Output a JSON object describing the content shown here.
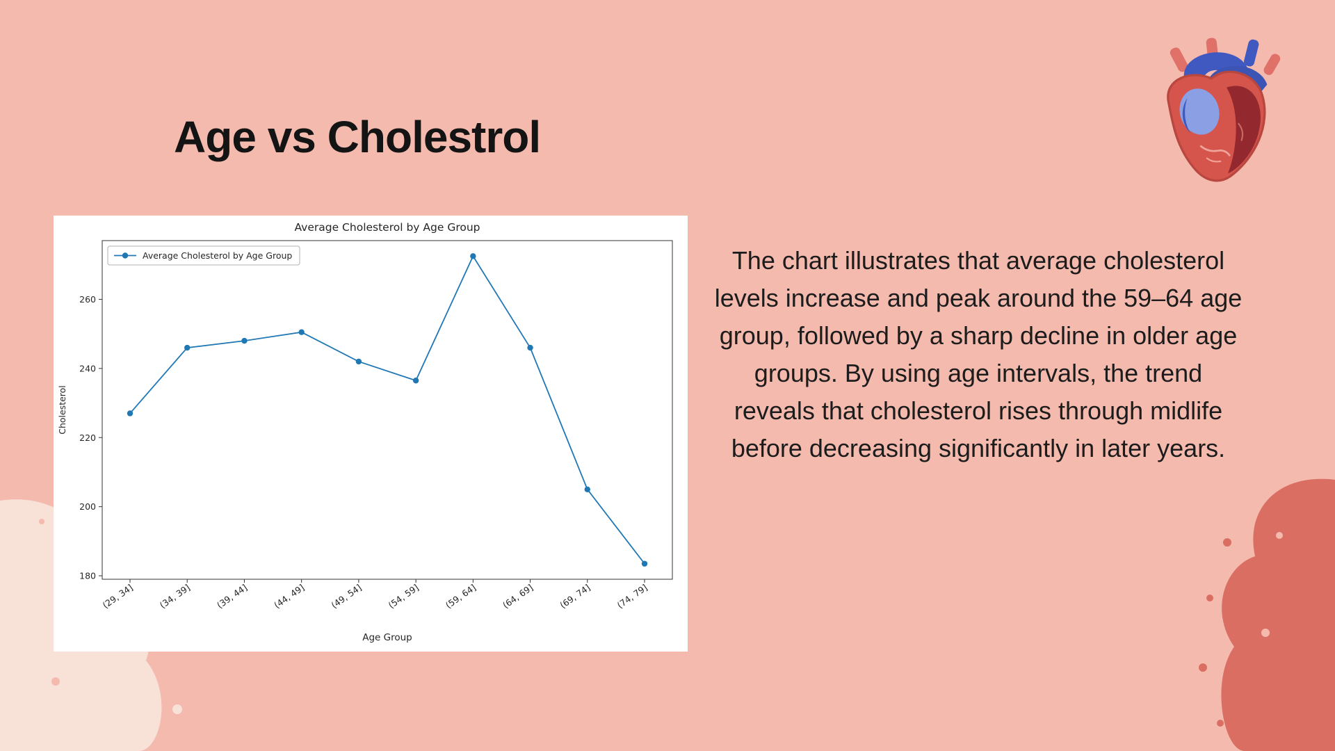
{
  "slide": {
    "title": "Age vs Cholestrol",
    "description": "The chart illustrates that average cholesterol levels increase and peak around the 59–64 age group, followed by a sharp decline in older age groups. By using age intervals, the trend reveals that cholesterol rises through midlife before decreasing significantly in later years."
  },
  "colors": {
    "background": "#f4baae",
    "blob_light": "#f8e2d7",
    "blob_dark": "#da6e62",
    "panel": "#ffffff",
    "line": "#1f77b4",
    "text": "#1c1c1c"
  },
  "chart_data": {
    "type": "line",
    "title": "Average Cholesterol by Age Group",
    "legend": [
      "Average Cholesterol by Age Group"
    ],
    "legend_position": "upper left",
    "categories": [
      "(29, 34]",
      "(34, 39]",
      "(39, 44]",
      "(44, 49]",
      "(49, 54]",
      "(54, 59]",
      "(59, 64]",
      "(64, 69]",
      "(69, 74]",
      "(74, 79]"
    ],
    "values": [
      227,
      246,
      248,
      250.5,
      242,
      236.5,
      272.5,
      246,
      205,
      183.5
    ],
    "xlabel": "Age Group",
    "ylabel": "Cholesterol",
    "yticks": [
      180,
      200,
      220,
      240,
      260
    ],
    "ylim": [
      179,
      277
    ],
    "grid": false,
    "marker": "o",
    "line_color": "#1f77b4"
  }
}
